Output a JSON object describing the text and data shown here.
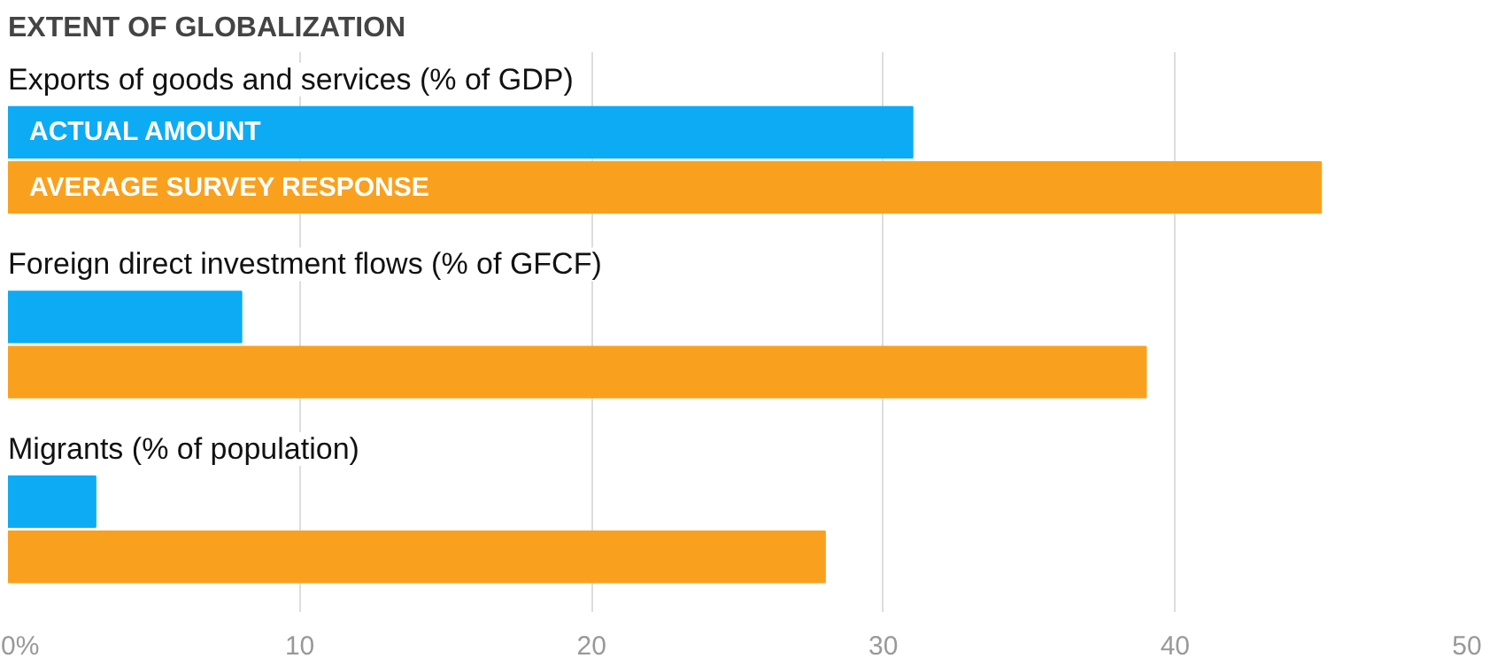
{
  "chart_data": {
    "type": "bar",
    "orientation": "horizontal",
    "title": "EXTENT OF GLOBALIZATION",
    "categories": [
      "Exports of goods and services (% of GDP)",
      "Foreign direct investment flows (% of GFCF)",
      "Migrants (% of population)"
    ],
    "series": [
      {
        "name": "ACTUAL AMOUNT",
        "color": "#0eabf5",
        "values": [
          31,
          8,
          3
        ]
      },
      {
        "name": "AVERAGE SURVEY RESPONSE",
        "color": "#f9a11f",
        "values": [
          45,
          39,
          28
        ]
      }
    ],
    "xlim": [
      0,
      50
    ],
    "xticks": [
      {
        "value": 0,
        "label": "0%"
      },
      10,
      20,
      30,
      40,
      50
    ],
    "grid": "x"
  }
}
